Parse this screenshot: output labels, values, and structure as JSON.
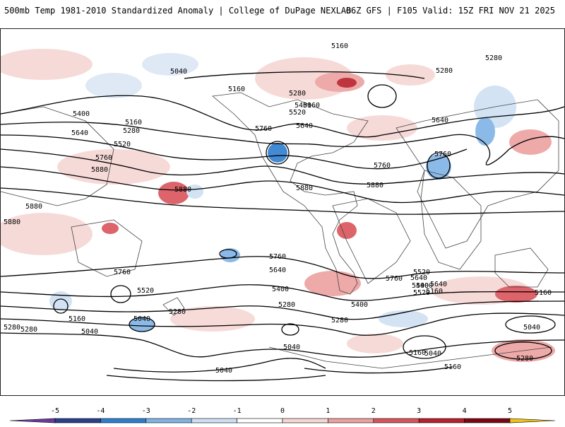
{
  "header": {
    "title_left": "500mb Temp 1981-2010 Standardized Anomaly | College of DuPage NEXLAB",
    "title_right": "06Z GFS | F105 Valid: 15Z FRI NOV 21 2025"
  },
  "map": {
    "contour_labels": [
      "5160",
      "5040",
      "5160",
      "5280",
      "5160",
      "5280",
      "5280",
      "5400",
      "5520",
      "5640",
      "5760",
      "5880",
      "5400",
      "5640",
      "5520",
      "5160",
      "5280",
      "5760",
      "5880",
      "5880",
      "5880",
      "5880",
      "5760",
      "5640",
      "5520",
      "5400",
      "5280",
      "5160",
      "5040",
      "5040",
      "5760",
      "5640",
      "5520",
      "5400",
      "5160",
      "5280",
      "5040",
      "5280",
      "5040",
      "5160",
      "5280",
      "5400",
      "5760",
      "5640",
      "5400",
      "5520",
      "5160",
      "5280",
      "5040",
      "5280",
      "5160",
      "5040",
      "5760",
      "5760",
      "5880",
      "5640"
    ]
  },
  "colorbar": {
    "ticks": [
      "-5",
      "-4",
      "-3",
      "-2",
      "-1",
      "0",
      "1",
      "2",
      "3",
      "4",
      "5"
    ],
    "colors": [
      "#6a3a9c",
      "#2b3f8a",
      "#2e7fd0",
      "#80b3e6",
      "#cfe0f3",
      "#ffffff",
      "#f6d7d4",
      "#eca1a0",
      "#d9545a",
      "#b8202c",
      "#7d0614",
      "#f2c21b"
    ]
  }
}
